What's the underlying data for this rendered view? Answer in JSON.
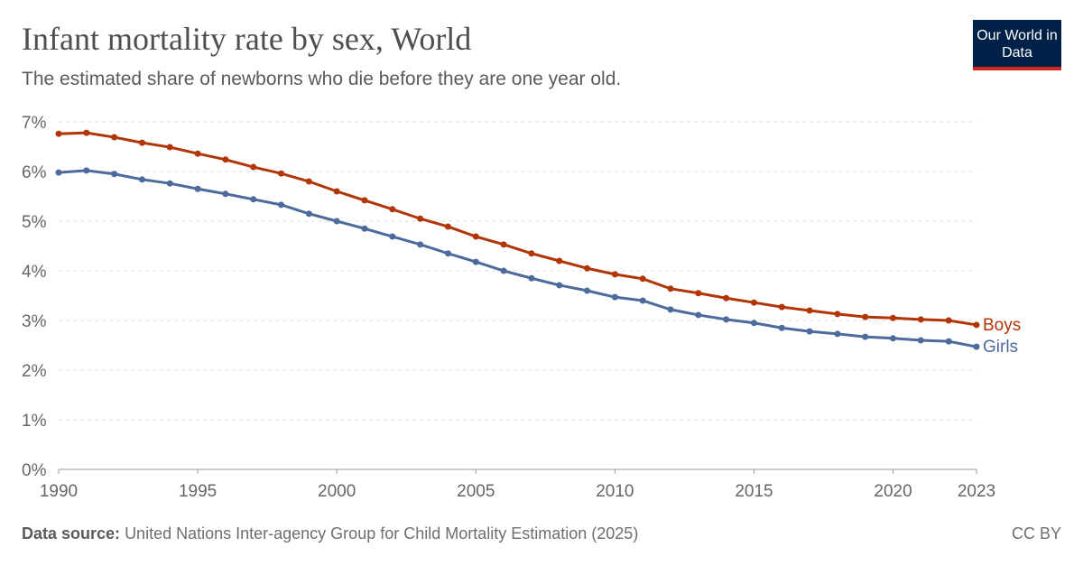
{
  "header": {
    "title": "Infant mortality rate by sex, World",
    "subtitle": "The estimated share of newborns who die before they are one year old.",
    "logo": "Our World in Data"
  },
  "footer": {
    "source_label": "Data source:",
    "source_text": "United Nations Inter-agency Group for Child Mortality Estimation (2025)",
    "license": "CC BY"
  },
  "chart_data": {
    "type": "line",
    "title": "Infant mortality rate by sex, World",
    "subtitle": "The estimated share of newborns who die before they are one year old.",
    "xlim": [
      1990,
      2023
    ],
    "ylim": [
      0,
      7
    ],
    "y_unit": "%",
    "grid": "horizontal dashed",
    "legend": "inline-right",
    "x_ticks": [
      1990,
      1995,
      2000,
      2005,
      2010,
      2015,
      2020,
      2023
    ],
    "y_ticks": [
      "0%",
      "1%",
      "2%",
      "3%",
      "4%",
      "5%",
      "6%",
      "7%"
    ],
    "x": [
      1990,
      1991,
      1992,
      1993,
      1994,
      1995,
      1996,
      1997,
      1998,
      1999,
      2000,
      2001,
      2002,
      2003,
      2004,
      2005,
      2006,
      2007,
      2008,
      2009,
      2010,
      2011,
      2012,
      2013,
      2014,
      2015,
      2016,
      2017,
      2018,
      2019,
      2020,
      2021,
      2022,
      2023
    ],
    "series": [
      {
        "name": "Boys",
        "color": "#b13507",
        "values": [
          6.76,
          6.78,
          6.69,
          6.58,
          6.49,
          6.36,
          6.24,
          6.09,
          5.96,
          5.8,
          5.6,
          5.42,
          5.24,
          5.05,
          4.89,
          4.69,
          4.53,
          4.35,
          4.2,
          4.05,
          3.93,
          3.84,
          3.64,
          3.55,
          3.45,
          3.36,
          3.27,
          3.2,
          3.13,
          3.07,
          3.05,
          3.02,
          3.0,
          2.91
        ]
      },
      {
        "name": "Girls",
        "color": "#4c6a9c",
        "values": [
          5.98,
          6.02,
          5.95,
          5.84,
          5.76,
          5.65,
          5.55,
          5.44,
          5.33,
          5.15,
          5.0,
          4.85,
          4.69,
          4.53,
          4.35,
          4.18,
          4.0,
          3.85,
          3.71,
          3.6,
          3.47,
          3.4,
          3.22,
          3.11,
          3.02,
          2.95,
          2.85,
          2.78,
          2.73,
          2.67,
          2.64,
          2.6,
          2.58,
          2.47
        ]
      }
    ]
  }
}
